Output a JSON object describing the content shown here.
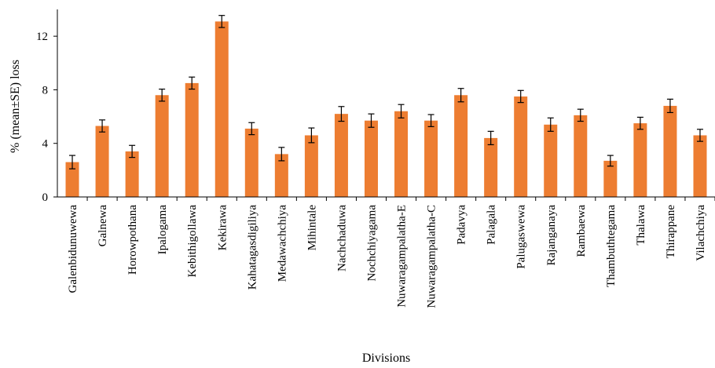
{
  "chart_data": {
    "type": "bar",
    "title": "",
    "xlabel": "Divisions",
    "ylabel": "% (mean±SE) loss",
    "ylim": [
      0,
      14
    ],
    "yticks": [
      0,
      4,
      8,
      12
    ],
    "grid": false,
    "legend": "none",
    "bar_color": "#ED7D31",
    "categories": [
      "Galenbidunuwewa",
      "Galnewa",
      "Horowpothana",
      "Ipalogama",
      "Kebithigollawa",
      "Kekirawa",
      "Kahatagasdigiliya",
      "Medawachchiya",
      "Mihintale",
      "Nachchaduwa",
      "Nochchiyagama",
      "Nuwaragampalatha-E",
      "Nuwaragampalatha-C",
      "Padavya",
      "Palagala",
      "Palugaswewa",
      "Rajanganaya",
      "Rambaewa",
      "Thambuthtegama",
      "Thalawa",
      "Thirappane",
      "Vilachchiya"
    ],
    "values": [
      2.6,
      5.3,
      3.4,
      7.6,
      8.5,
      13.1,
      5.1,
      3.2,
      4.6,
      6.2,
      5.7,
      6.4,
      5.7,
      7.6,
      4.4,
      7.5,
      5.4,
      6.1,
      2.7,
      5.5,
      6.8,
      4.6
    ],
    "errors": [
      0.5,
      0.45,
      0.45,
      0.45,
      0.45,
      0.45,
      0.45,
      0.5,
      0.55,
      0.55,
      0.5,
      0.5,
      0.45,
      0.5,
      0.5,
      0.45,
      0.5,
      0.45,
      0.4,
      0.45,
      0.5,
      0.45
    ]
  }
}
